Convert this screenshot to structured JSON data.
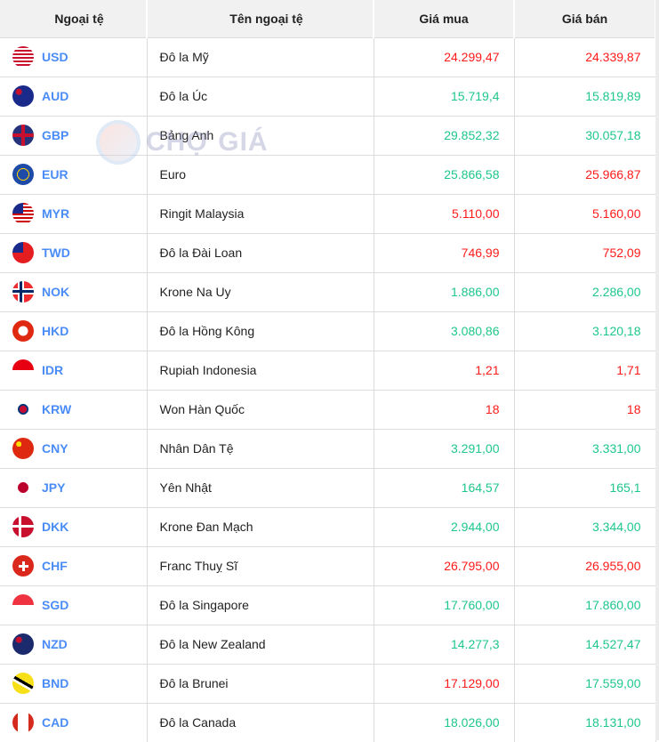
{
  "header": {
    "code": "Ngoại tệ",
    "name": "Tên ngoại tệ",
    "buy": "Giá mua",
    "sell": "Giá bán"
  },
  "watermark": "CHỢ GIÁ",
  "colors": {
    "up": "#ff1a1a",
    "down": "#1ec78b",
    "code": "#4a8cf7"
  },
  "rows": [
    {
      "code": "USD",
      "name": "Đô la Mỹ",
      "buy": "24.299,47",
      "sell": "24.339,87",
      "buy_trend": "up",
      "sell_trend": "up",
      "flag": "us-flag"
    },
    {
      "code": "AUD",
      "name": "Đô la Úc",
      "buy": "15.719,4",
      "sell": "15.819,89",
      "buy_trend": "down",
      "sell_trend": "down",
      "flag": "au-flag"
    },
    {
      "code": "GBP",
      "name": "Bảng Anh",
      "buy": "29.852,32",
      "sell": "30.057,18",
      "buy_trend": "down",
      "sell_trend": "down",
      "flag": "gb-flag"
    },
    {
      "code": "EUR",
      "name": "Euro",
      "buy": "25.866,58",
      "sell": "25.966,87",
      "buy_trend": "down",
      "sell_trend": "up",
      "flag": "eu-flag"
    },
    {
      "code": "MYR",
      "name": "Ringit Malaysia",
      "buy": "5.110,00",
      "sell": "5.160,00",
      "buy_trend": "up",
      "sell_trend": "up",
      "flag": "my-flag"
    },
    {
      "code": "TWD",
      "name": "Đô la Đài Loan",
      "buy": "746,99",
      "sell": "752,09",
      "buy_trend": "up",
      "sell_trend": "up",
      "flag": "tw-flag"
    },
    {
      "code": "NOK",
      "name": "Krone Na Uy",
      "buy": "1.886,00",
      "sell": "2.286,00",
      "buy_trend": "down",
      "sell_trend": "down",
      "flag": "no-flag"
    },
    {
      "code": "HKD",
      "name": "Đô la Hồng Kông",
      "buy": "3.080,86",
      "sell": "3.120,18",
      "buy_trend": "down",
      "sell_trend": "down",
      "flag": "hk-flag"
    },
    {
      "code": "IDR",
      "name": "Rupiah Indonesia",
      "buy": "1,21",
      "sell": "1,71",
      "buy_trend": "up",
      "sell_trend": "up",
      "flag": "id-flag"
    },
    {
      "code": "KRW",
      "name": "Won Hàn Quốc",
      "buy": "18",
      "sell": "18",
      "buy_trend": "up",
      "sell_trend": "up",
      "flag": "kr-flag"
    },
    {
      "code": "CNY",
      "name": "Nhân Dân Tệ",
      "buy": "3.291,00",
      "sell": "3.331,00",
      "buy_trend": "down",
      "sell_trend": "down",
      "flag": "cn-flag"
    },
    {
      "code": "JPY",
      "name": "Yên Nhật",
      "buy": "164,57",
      "sell": "165,1",
      "buy_trend": "down",
      "sell_trend": "down",
      "flag": "jp-flag"
    },
    {
      "code": "DKK",
      "name": "Krone Đan Mạch",
      "buy": "2.944,00",
      "sell": "3.344,00",
      "buy_trend": "down",
      "sell_trend": "down",
      "flag": "dk-flag"
    },
    {
      "code": "CHF",
      "name": "Franc Thuỵ Sĩ",
      "buy": "26.795,00",
      "sell": "26.955,00",
      "buy_trend": "up",
      "sell_trend": "up",
      "flag": "ch-flag"
    },
    {
      "code": "SGD",
      "name": "Đô la Singapore",
      "buy": "17.760,00",
      "sell": "17.860,00",
      "buy_trend": "down",
      "sell_trend": "down",
      "flag": "sg-flag"
    },
    {
      "code": "NZD",
      "name": "Đô la New Zealand",
      "buy": "14.277,3",
      "sell": "14.527,47",
      "buy_trend": "down",
      "sell_trend": "down",
      "flag": "nz-flag"
    },
    {
      "code": "BND",
      "name": "Đô la Brunei",
      "buy": "17.129,00",
      "sell": "17.559,00",
      "buy_trend": "up",
      "sell_trend": "down",
      "flag": "bn-flag"
    },
    {
      "code": "CAD",
      "name": "Đô la Canada",
      "buy": "18.026,00",
      "sell": "18.131,00",
      "buy_trend": "down",
      "sell_trend": "down",
      "flag": "ca-flag"
    }
  ]
}
